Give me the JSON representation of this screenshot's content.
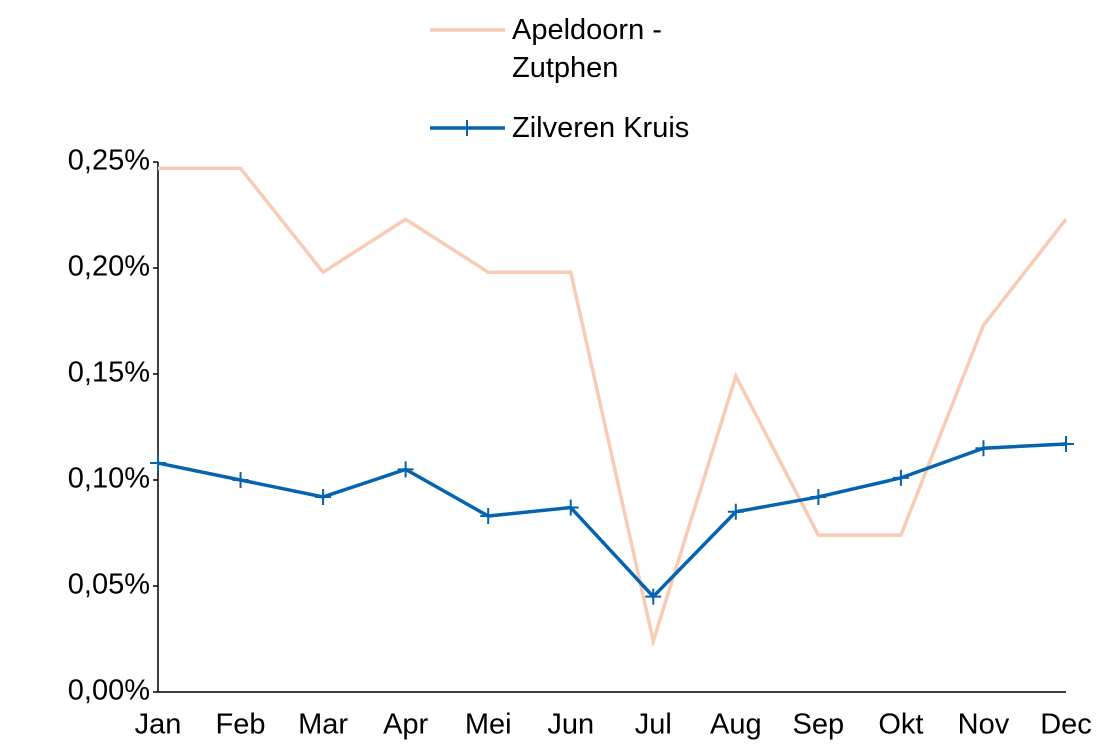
{
  "chart_data": {
    "type": "line",
    "categories": [
      "Jan",
      "Feb",
      "Mar",
      "Apr",
      "Mei",
      "Jun",
      "Jul",
      "Aug",
      "Sep",
      "Okt",
      "Nov",
      "Dec"
    ],
    "series": [
      {
        "name": "Apeldoorn -Zutphen",
        "color": "#f8cbb4",
        "marker": false,
        "values": [
          0.247,
          0.247,
          0.198,
          0.223,
          0.198,
          0.198,
          0.024,
          0.149,
          0.074,
          0.074,
          0.173,
          0.223
        ]
      },
      {
        "name": "Zilveren Kruis",
        "color": "#0563b0",
        "marker": true,
        "values": [
          0.108,
          0.1,
          0.092,
          0.105,
          0.083,
          0.087,
          0.045,
          0.085,
          0.092,
          0.101,
          0.115,
          0.117
        ]
      }
    ],
    "ylim": [
      0,
      0.25
    ],
    "yticks": [
      {
        "value": 0,
        "label": "0,00%"
      },
      {
        "value": 0.05,
        "label": "0,05%"
      },
      {
        "value": 0.1,
        "label": "0,10%"
      },
      {
        "value": 0.15,
        "label": "0,15%"
      },
      {
        "value": 0.2,
        "label": "0,20%"
      },
      {
        "value": 0.25,
        "label": "0,25%"
      }
    ],
    "grid": false,
    "legend": "top"
  }
}
